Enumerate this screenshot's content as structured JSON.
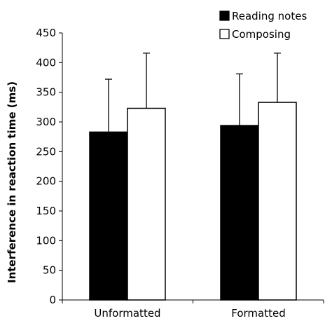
{
  "chart_data": {
    "type": "bar",
    "title": "",
    "xlabel": "",
    "ylabel": "Interference in reaction time (ms)",
    "ylim": [
      0,
      450
    ],
    "yticks": [
      0,
      50,
      100,
      150,
      200,
      250,
      300,
      350,
      400,
      450
    ],
    "categories": [
      "Unformatted",
      "Formatted"
    ],
    "series": [
      {
        "name": "Reading notes",
        "values": [
          283,
          294
        ],
        "error_upper": [
          89,
          87
        ],
        "fill": "#000000"
      },
      {
        "name": "Composing",
        "values": [
          323,
          333
        ],
        "error_upper": [
          93,
          83
        ],
        "fill": "#ffffff"
      }
    ],
    "legend_position": "top-right",
    "grid": false
  }
}
